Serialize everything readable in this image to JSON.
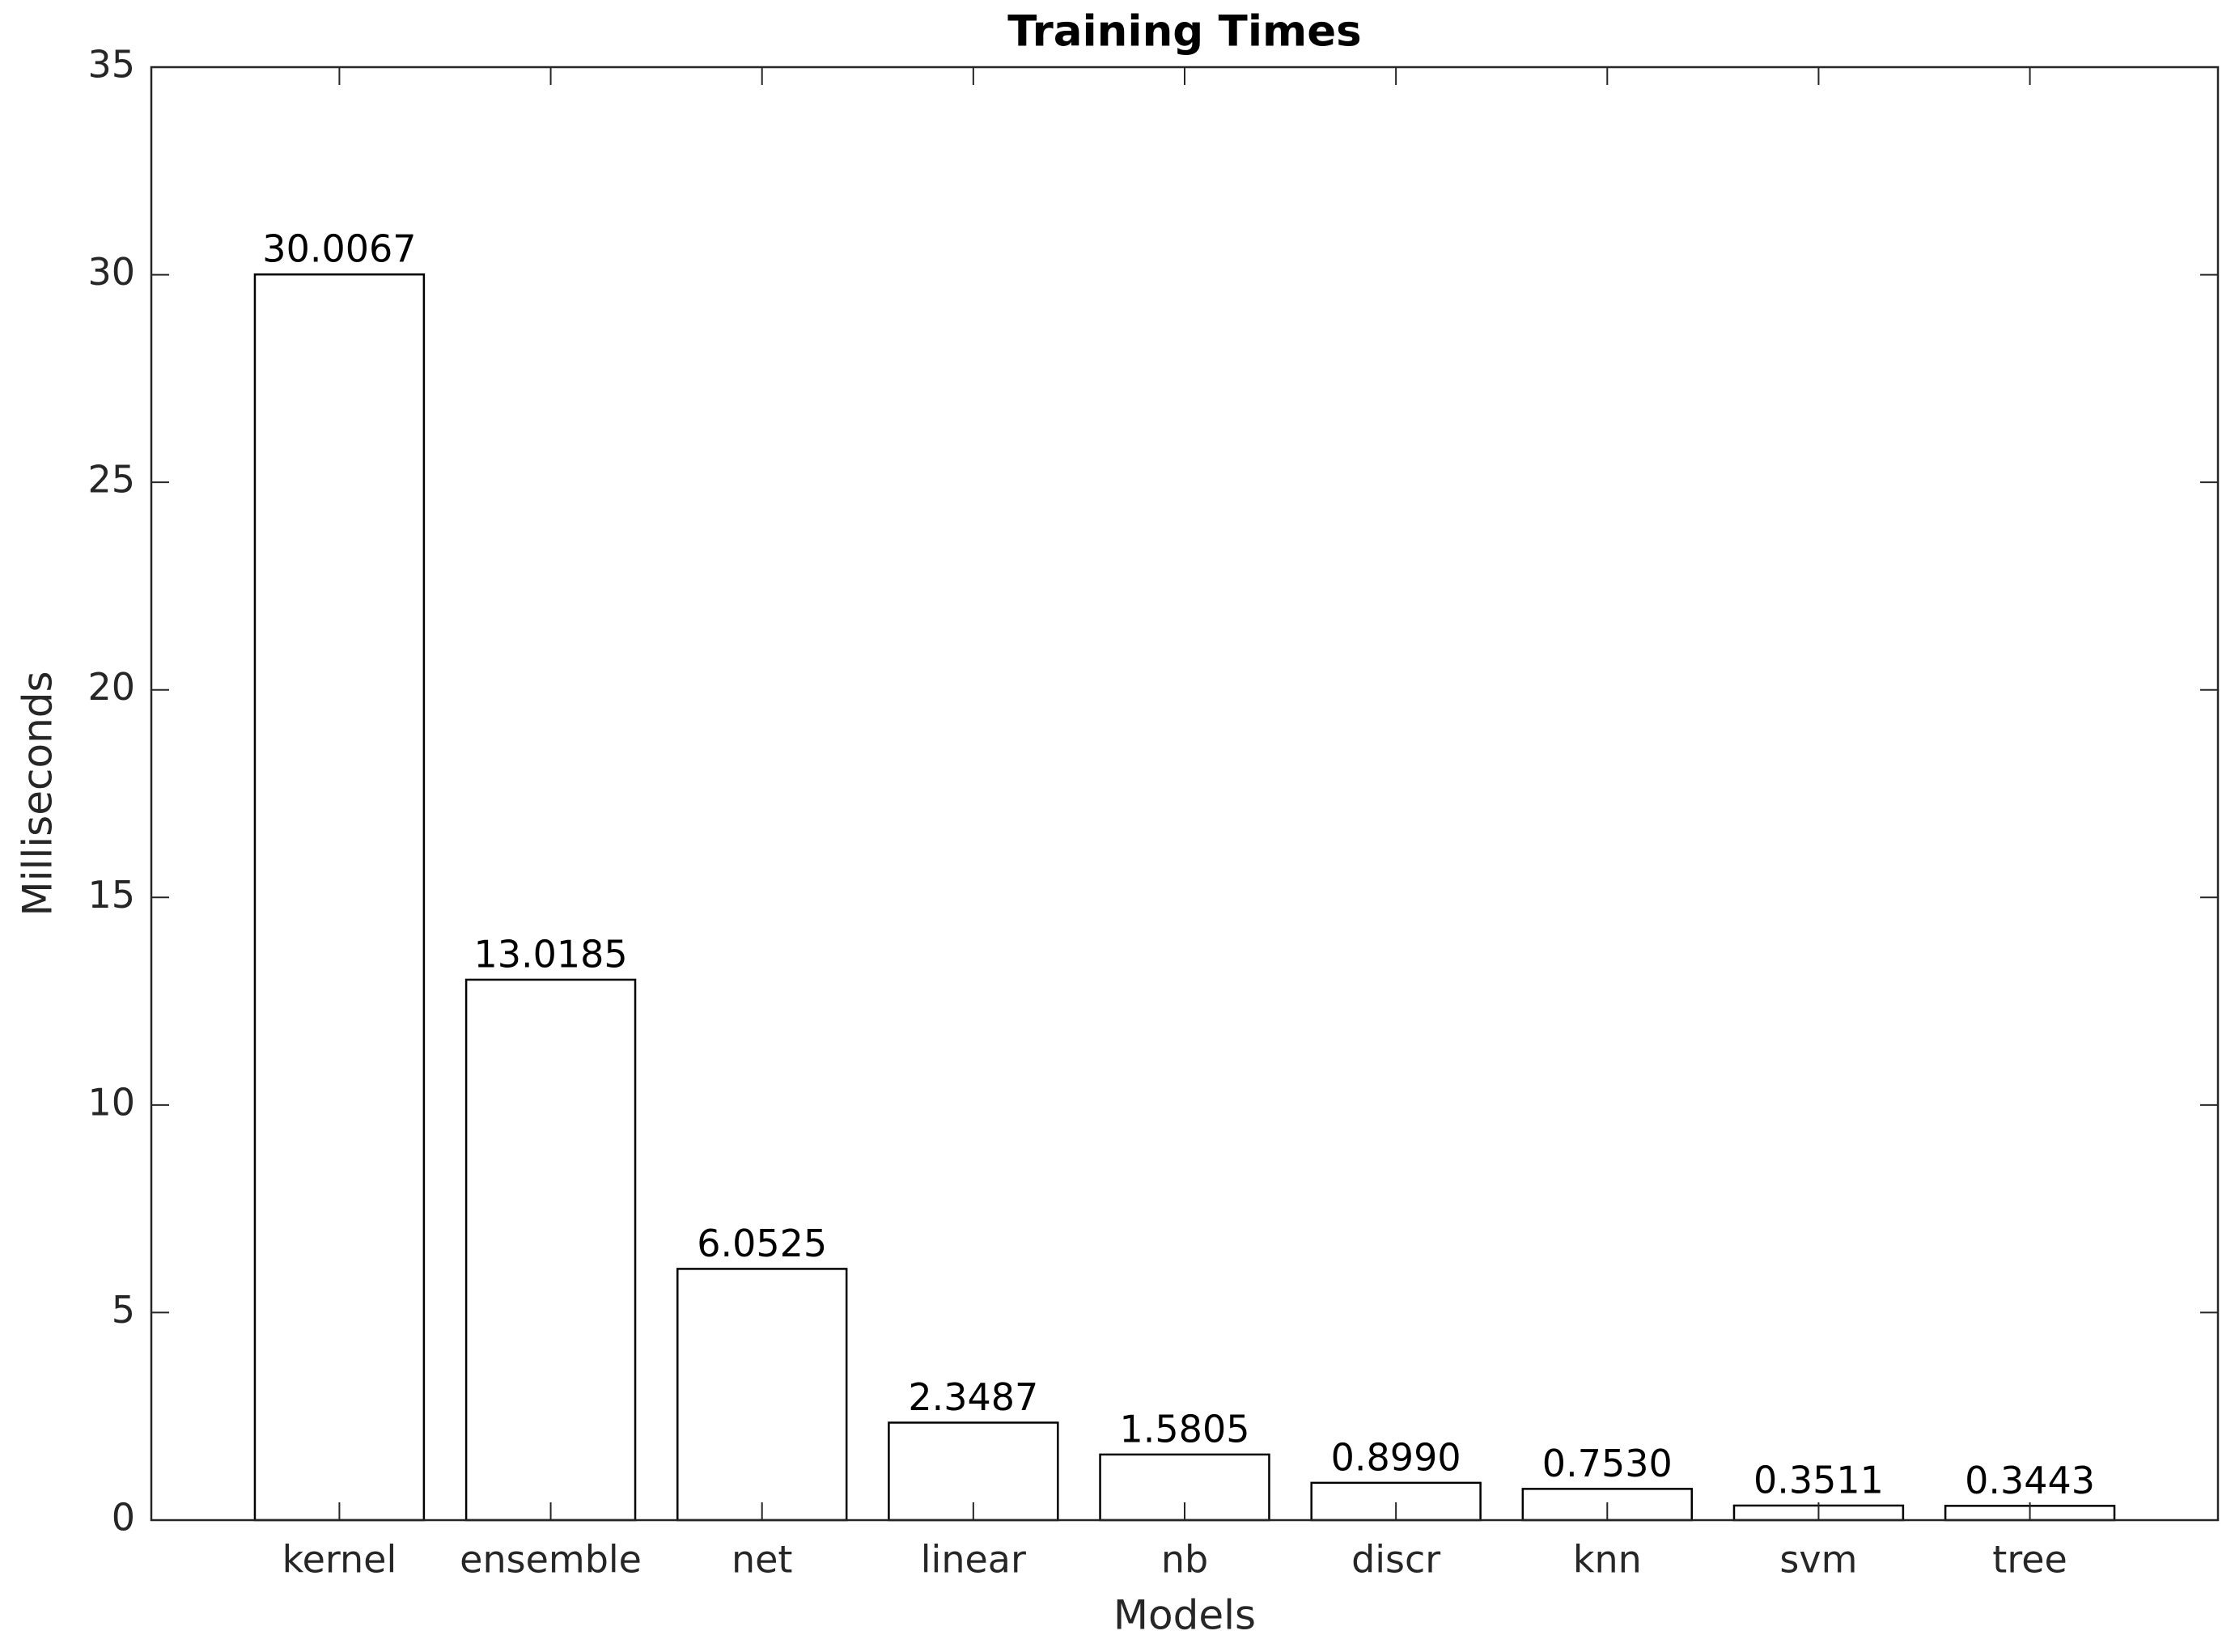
{
  "chart_data": {
    "type": "bar",
    "title": "Training Times",
    "xlabel": "Models",
    "ylabel": "Milliseconds",
    "categories": [
      "kernel",
      "ensemble",
      "net",
      "linear",
      "nb",
      "discr",
      "knn",
      "svm",
      "tree"
    ],
    "values": [
      30.0067,
      13.0185,
      6.0525,
      2.3487,
      1.5805,
      0.899,
      0.753,
      0.3511,
      0.3443
    ],
    "value_labels": [
      "30.0067",
      "13.0185",
      "6.0525",
      "2.3487",
      "1.5805",
      "0.8990",
      "0.7530",
      "0.3511",
      "0.3443"
    ],
    "color": "#ffffff",
    "ylim": [
      0,
      35
    ],
    "yticks": [
      0,
      5,
      10,
      15,
      20,
      25,
      30,
      35
    ],
    "grid": false
  }
}
